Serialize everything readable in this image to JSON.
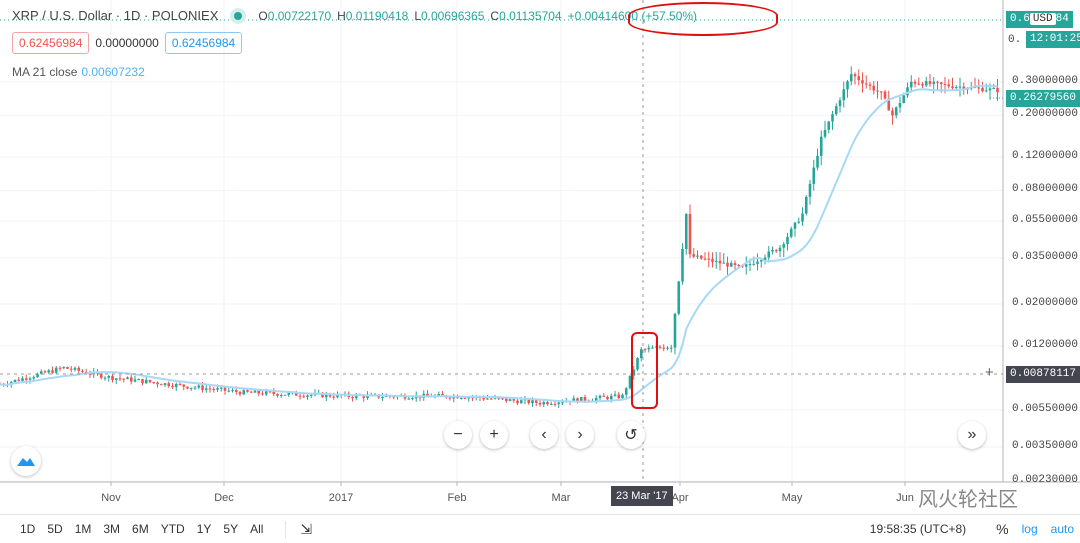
{
  "header": {
    "symbol": "XRP / U.S. Dollar · 1D · POLONIEX",
    "open": "O",
    "open_val": "0.00722170",
    "high": "H",
    "high_val": "0.01190418",
    "low": "L",
    "low_val": "0.00696365",
    "close": "C",
    "close_val": "0.01135704",
    "change": "+0.00414600 (+57.50%)"
  },
  "values": {
    "sell": "0.62456984",
    "spread": "0.00000000",
    "buy": "0.62456984"
  },
  "ma": {
    "label": "MA 21 close",
    "value": "0.00607232"
  },
  "price_axis": {
    "currency": "USD",
    "countdown": "12:01:25",
    "last_price_partial": "0.6",
    "last_price_tail": "84",
    "top_partial": "0.",
    "current_price": "0.26279560",
    "crosshair_price": "0.00878117",
    "ticks": [
      "0.30000000",
      "0.20000000",
      "0.12000000",
      "0.08000000",
      "0.05500000",
      "0.03500000",
      "0.02000000",
      "0.01200000",
      "0.00550000",
      "0.00350000",
      "0.00230000"
    ]
  },
  "time_axis": {
    "labels": [
      "Nov",
      "Dec",
      "2017",
      "Feb",
      "Mar",
      "Apr",
      "May",
      "Jun"
    ],
    "crosshair_date": "23 Mar '17"
  },
  "nav": {
    "zoom_out": "−",
    "zoom_in": "+",
    "left": "‹",
    "right": "›",
    "reset": "↺",
    "scroll_end": "»"
  },
  "bottom": {
    "ranges": [
      "1D",
      "5D",
      "1M",
      "3M",
      "6M",
      "YTD",
      "1Y",
      "5Y",
      "All"
    ],
    "time": "19:58:35 (UTC+8)",
    "percent": "%",
    "log": "log",
    "auto": "auto"
  },
  "watermark": "风火轮社区",
  "colors": {
    "up": "#26a69a",
    "down": "#ef5350",
    "ma": "#a7d8f5",
    "accent": "#2196f3"
  },
  "chart_data": {
    "type": "candlestick",
    "scale": "log",
    "ma_period": 21,
    "keypoints": [
      [
        "2016-10-03",
        0.0075
      ],
      [
        "2016-10-20",
        0.0092
      ],
      [
        "2016-11-01",
        0.0082
      ],
      [
        "2016-11-20",
        0.0074
      ],
      [
        "2016-12-07",
        0.0068
      ],
      [
        "2017-01-05",
        0.0065
      ],
      [
        "2017-02-03",
        0.0065
      ],
      [
        "2017-02-24",
        0.006
      ],
      [
        "2017-03-18",
        0.0065
      ],
      [
        "2017-03-23",
        0.0114
      ],
      [
        "2017-03-31",
        0.012
      ],
      [
        "2017-04-04",
        0.06
      ],
      [
        "2017-04-05",
        0.036
      ],
      [
        "2017-04-19",
        0.031
      ],
      [
        "2017-04-29",
        0.04
      ],
      [
        "2017-05-05",
        0.06
      ],
      [
        "2017-05-10",
        0.15
      ],
      [
        "2017-05-18",
        0.33
      ],
      [
        "2017-05-26",
        0.26
      ],
      [
        "2017-05-29",
        0.2
      ],
      [
        "2017-06-03",
        0.3
      ],
      [
        "2017-06-27",
        0.27
      ]
    ]
  }
}
